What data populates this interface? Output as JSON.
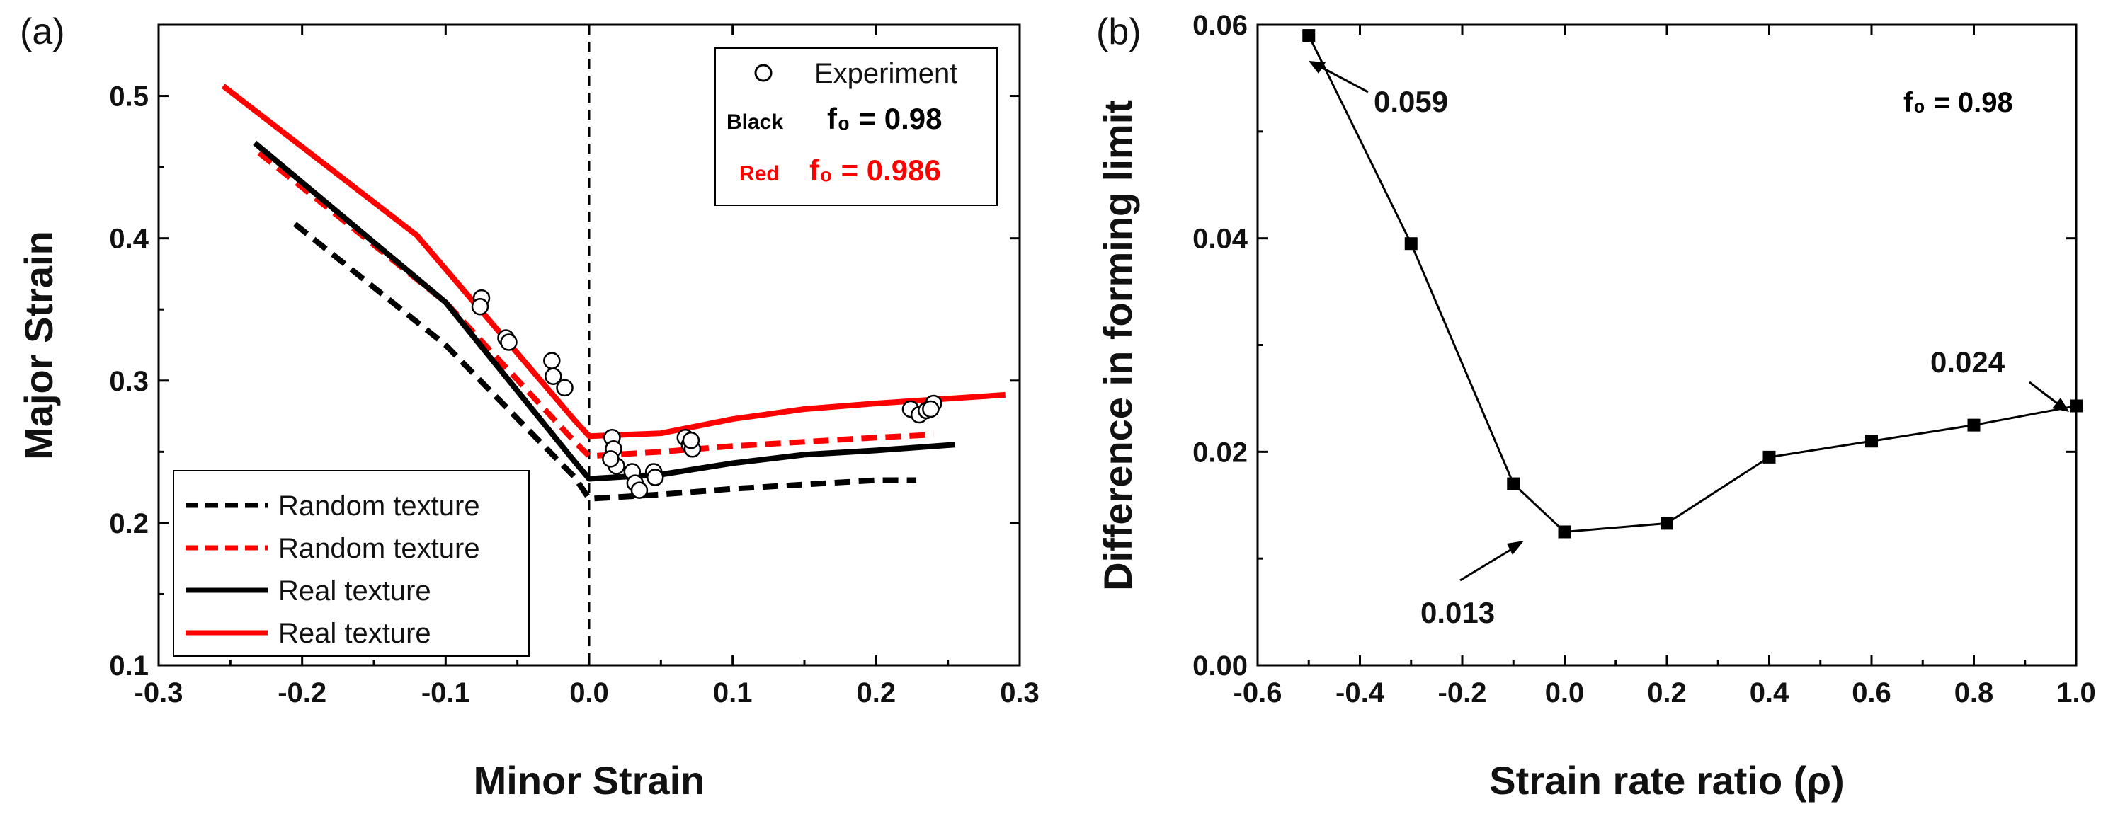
{
  "chart_data": [
    {
      "panel_label": "(a)",
      "type": "line",
      "xlabel": "Minor Strain",
      "ylabel": "Major Strain",
      "xlim": [
        -0.3,
        0.3
      ],
      "ylim": [
        0.1,
        0.55
      ],
      "xticks": [
        -0.3,
        -0.2,
        -0.1,
        0.0,
        0.1,
        0.2,
        0.3
      ],
      "xtick_labels": [
        "-0.3",
        "-0.2",
        "-0.1",
        "0.0",
        "0.1",
        "0.2",
        "0.3"
      ],
      "yticks": [
        0.1,
        0.2,
        0.3,
        0.4,
        0.5
      ],
      "ytick_labels": [
        "0.1",
        "0.2",
        "0.3",
        "0.4",
        "0.5"
      ],
      "vline_x": 0.0,
      "series": [
        {
          "name": "Random texture",
          "color": "#000000",
          "dash": true,
          "x": [
            -0.205,
            -0.1,
            -0.01,
            0.0,
            0.05,
            0.1,
            0.15,
            0.2,
            0.228
          ],
          "y": [
            0.41,
            0.325,
            0.232,
            0.217,
            0.22,
            0.224,
            0.227,
            0.23,
            0.23
          ]
        },
        {
          "name": "Random texture",
          "color": "#ff0000",
          "dash": true,
          "x": [
            -0.23,
            -0.1,
            -0.01,
            0.0,
            0.05,
            0.1,
            0.15,
            0.2,
            0.24
          ],
          "y": [
            0.46,
            0.355,
            0.257,
            0.247,
            0.25,
            0.254,
            0.257,
            0.26,
            0.262
          ]
        },
        {
          "name": "Real texture",
          "color": "#000000",
          "dash": false,
          "x": [
            -0.233,
            -0.1,
            -0.01,
            0.0,
            0.05,
            0.1,
            0.15,
            0.2,
            0.255
          ],
          "y": [
            0.467,
            0.355,
            0.243,
            0.231,
            0.234,
            0.242,
            0.248,
            0.251,
            0.255
          ]
        },
        {
          "name": "Real texture",
          "color": "#ff0000",
          "dash": false,
          "x": [
            -0.255,
            -0.12,
            -0.01,
            0.0,
            0.05,
            0.1,
            0.15,
            0.2,
            0.29
          ],
          "y": [
            0.507,
            0.402,
            0.272,
            0.261,
            0.263,
            0.273,
            0.28,
            0.284,
            0.29
          ]
        }
      ],
      "experiment": {
        "name": "Experiment",
        "x": [
          -0.075,
          -0.076,
          -0.058,
          -0.056,
          -0.026,
          -0.025,
          -0.017,
          0.016,
          0.017,
          0.019,
          0.015,
          0.03,
          0.032,
          0.035,
          0.045,
          0.046,
          0.067,
          0.07,
          0.072,
          0.071,
          0.224,
          0.23,
          0.235,
          0.24,
          0.238
        ],
        "y": [
          0.358,
          0.352,
          0.33,
          0.327,
          0.314,
          0.303,
          0.295,
          0.26,
          0.252,
          0.24,
          0.245,
          0.236,
          0.228,
          0.223,
          0.236,
          0.232,
          0.26,
          0.255,
          0.252,
          0.258,
          0.28,
          0.276,
          0.279,
          0.284,
          0.28
        ]
      },
      "legend_lines": [
        "Random texture",
        "Random texture",
        "Real texture",
        "Real texture"
      ],
      "legend_box": {
        "experiment_label": "Experiment",
        "black_label": "Black",
        "black_value": "f₀ = 0.98",
        "red_label": "Red",
        "red_value": "f₀ = 0.986"
      }
    },
    {
      "panel_label": "(b)",
      "type": "line",
      "xlabel": "Strain rate ratio (ρ)",
      "ylabel": "Difference in forming limit",
      "xlim": [
        -0.6,
        1.0
      ],
      "ylim": [
        0.0,
        0.06
      ],
      "xticks": [
        -0.6,
        -0.4,
        -0.2,
        0.0,
        0.2,
        0.4,
        0.6,
        0.8,
        1.0
      ],
      "xtick_labels": [
        "-0.6",
        "-0.4",
        "-0.2",
        "0.0",
        "0.2",
        "0.4",
        "0.6",
        "0.8",
        "1.0"
      ],
      "yticks": [
        0.0,
        0.02,
        0.04,
        0.06
      ],
      "ytick_labels": [
        "0.00",
        "0.02",
        "0.04",
        "0.06"
      ],
      "series": [
        {
          "name": "Difference",
          "color": "#000000",
          "x": [
            -0.5,
            -0.3,
            -0.1,
            0.0,
            0.2,
            0.4,
            0.6,
            0.8,
            1.0
          ],
          "y": [
            0.059,
            0.0395,
            0.017,
            0.0125,
            0.0133,
            0.0195,
            0.021,
            0.0225,
            0.0243
          ]
        }
      ],
      "annotations": [
        {
          "text": "0.059",
          "x": -0.5,
          "y": 0.059
        },
        {
          "text": "0.013",
          "x": 0.0,
          "y": 0.0125
        },
        {
          "text": "0.024",
          "x": 1.0,
          "y": 0.0243
        }
      ],
      "note": "f₀ = 0.98"
    }
  ]
}
